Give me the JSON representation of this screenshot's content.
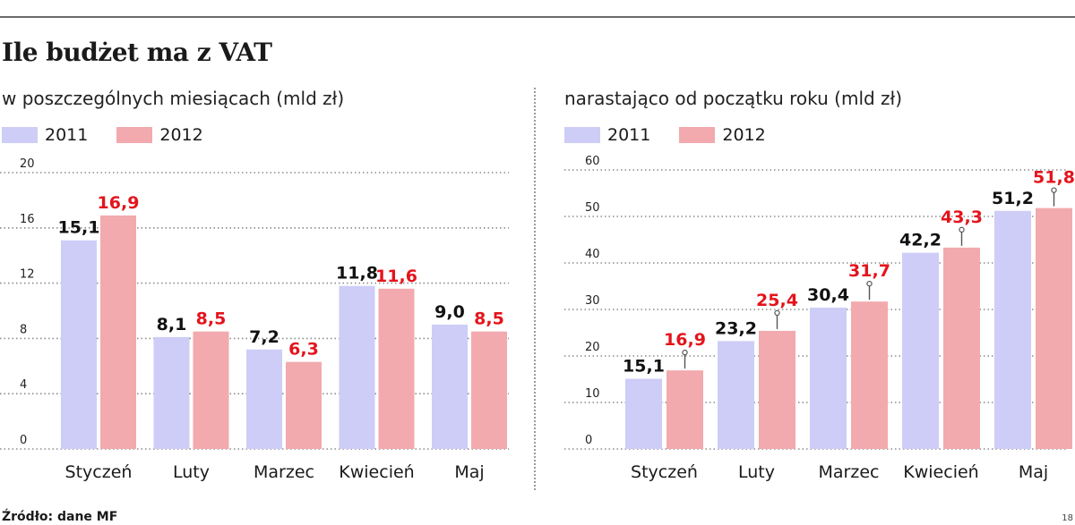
{
  "title": "Ile budżet ma z VAT",
  "source": "Źródło: dane MF",
  "page_number": "18",
  "colors": {
    "2011": "#cdcdf7",
    "2012": "#f2aaae",
    "label_2011": "#111111",
    "label_2012": "#e4141c",
    "grid": "#8c8c8c"
  },
  "chart_data": [
    {
      "type": "bar",
      "subtitle": "w poszczególnych miesiącach (mld zł)",
      "categories": [
        "Styczeń",
        "Luty",
        "Marzec",
        "Kwiecień",
        "Maj"
      ],
      "series": [
        {
          "name": "2011",
          "values": [
            15.1,
            8.1,
            7.2,
            11.8,
            9.0
          ],
          "labels": [
            "15,1",
            "8,1",
            "7,2",
            "11,8",
            "9,0"
          ]
        },
        {
          "name": "2012",
          "values": [
            16.9,
            8.5,
            6.3,
            11.6,
            8.5
          ],
          "labels": [
            "16,9",
            "8,5",
            "6,3",
            "11,6",
            "8,5"
          ]
        }
      ],
      "yticks": [
        "0",
        "4",
        "8",
        "12",
        "16",
        "20"
      ],
      "ylim": [
        0,
        20
      ],
      "grid": true,
      "legend": "top-left"
    },
    {
      "type": "bar",
      "subtitle": "narastająco od początku roku (mld zł)",
      "categories": [
        "Styczeń",
        "Luty",
        "Marzec",
        "Kwiecień",
        "Maj"
      ],
      "series": [
        {
          "name": "2011",
          "values": [
            15.1,
            23.2,
            30.4,
            42.2,
            51.2
          ],
          "labels": [
            "15,1",
            "23,2",
            "30,4",
            "42,2",
            "51,2"
          ]
        },
        {
          "name": "2012",
          "values": [
            16.9,
            25.4,
            31.7,
            43.3,
            51.8
          ],
          "labels": [
            "16,9",
            "25,4",
            "31,7",
            "43,3",
            "51,8"
          ]
        }
      ],
      "yticks": [
        "0",
        "10",
        "20",
        "30",
        "40",
        "50",
        "60"
      ],
      "ylim": [
        0,
        60
      ],
      "grid": true,
      "legend": "top-left"
    }
  ]
}
